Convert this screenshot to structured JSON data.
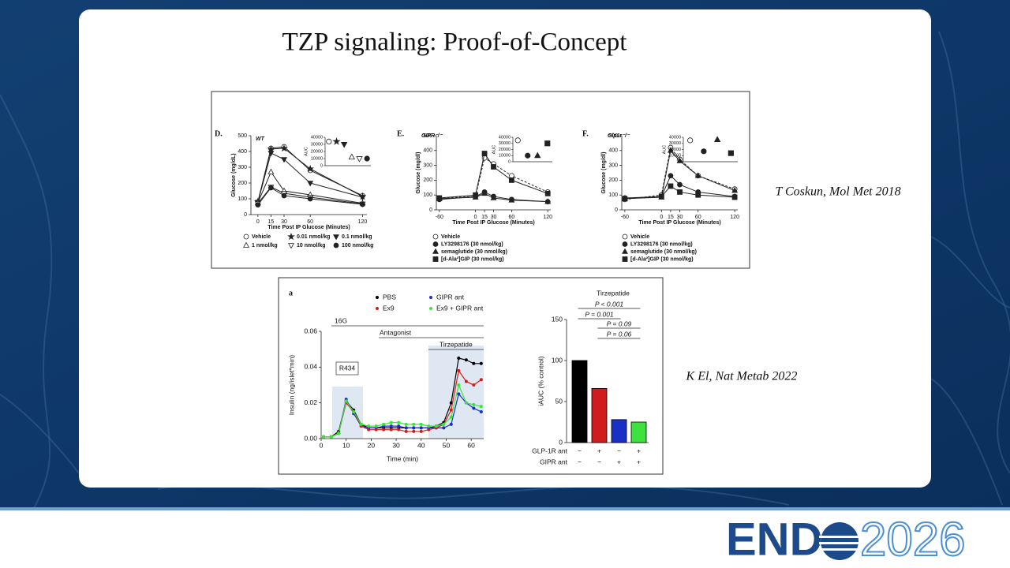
{
  "slide": {
    "title": "TZP signaling: Proof-of-Concept",
    "citations": [
      "T Coskun, Mol Met 2018",
      "K El, Nat Metab 2022"
    ],
    "logo": {
      "left": "END",
      "right": "2026"
    }
  },
  "chart_data": [
    {
      "type": "line",
      "panel": "D.",
      "genotype": "WT",
      "xlabel": "Time Post IP Glucose (Minutes)",
      "ylabel": "Glucose (mg/dL)",
      "x": [
        0,
        15,
        30,
        60,
        120
      ],
      "xlim": [
        -8,
        125
      ],
      "xticks": [
        0,
        15,
        30,
        60,
        120
      ],
      "ylim": [
        0,
        500
      ],
      "yticks": [
        0,
        100,
        200,
        300,
        400,
        500
      ],
      "series": [
        {
          "name": "Vehicle",
          "color": "#222222",
          "marker": "circle",
          "filled": false,
          "values": [
            80,
            420,
            430,
            280,
            120
          ]
        },
        {
          "name": "0.01 nmol/kg",
          "color": "#222222",
          "marker": "star",
          "filled": true,
          "values": [
            82,
            415,
            420,
            290,
            115
          ]
        },
        {
          "name": "0.1 nmol/kg",
          "color": "#222222",
          "marker": "triangle-down",
          "filled": true,
          "values": [
            78,
            390,
            350,
            200,
            110
          ]
        },
        {
          "name": "1 nmol/kg",
          "color": "#222222",
          "marker": "triangle",
          "filled": false,
          "values": [
            75,
            270,
            150,
            125,
            72
          ]
        },
        {
          "name": "10 nmol/kg",
          "color": "#222222",
          "marker": "triangle-down",
          "filled": false,
          "values": [
            70,
            175,
            135,
            110,
            68
          ]
        },
        {
          "name": "100 nmol/kg",
          "color": "#222222",
          "marker": "circle",
          "filled": true,
          "values": [
            62,
            170,
            120,
            100,
            65
          ]
        }
      ],
      "inset": {
        "ylabel": "AUC",
        "ylim": [
          0,
          40000
        ],
        "yticks": [
          0,
          10000,
          20000,
          30000,
          40000
        ],
        "values": [
          34000,
          34000,
          30000,
          12000,
          10000,
          10000
        ]
      }
    },
    {
      "type": "line",
      "panel": "E.",
      "genotype": "GIPR⁻/⁻",
      "xlabel": "Time Post IP Glucose (Minutes)",
      "ylabel": "Glucose (mg/dl)",
      "x": [
        -60,
        0,
        15,
        30,
        60,
        120
      ],
      "xlim": [
        -65,
        125
      ],
      "xticks": [
        -60,
        0,
        15,
        30,
        60,
        120
      ],
      "ylim": [
        0,
        500
      ],
      "yticks": [
        0,
        100,
        200,
        300,
        400,
        500
      ],
      "series": [
        {
          "name": "Vehicle",
          "color": "#222222",
          "marker": "circle",
          "filled": false,
          "line_style": "dashed",
          "values": [
            80,
            90,
            350,
            310,
            230,
            120
          ]
        },
        {
          "name": "LY3298176 (30 nmol/kg)",
          "color": "#222222",
          "marker": "circle",
          "filled": true,
          "values": [
            70,
            90,
            120,
            90,
            70,
            55
          ]
        },
        {
          "name": "semaglutide (30 nmol/kg)",
          "color": "#222222",
          "marker": "triangle",
          "filled": true,
          "values": [
            75,
            85,
            110,
            80,
            65,
            55
          ]
        },
        {
          "name": "[d-Ala²]GIP (30 nmol/kg)",
          "color": "#222222",
          "marker": "square",
          "filled": true,
          "values": [
            80,
            100,
            380,
            290,
            200,
            110
          ]
        }
      ],
      "inset": {
        "ylabel": "AUC",
        "ylim": [
          0,
          40000
        ],
        "yticks": [
          0,
          10000,
          20000,
          30000,
          40000
        ],
        "values": [
          35000,
          10000,
          10000,
          30000
        ]
      }
    },
    {
      "type": "line",
      "panel": "F.",
      "genotype": "Glp1r⁻/⁻",
      "xlabel": "Time Post IP Glucose (Minutes)",
      "ylabel": "Glucose (mg/dl)",
      "x": [
        -60,
        0,
        15,
        30,
        60,
        120
      ],
      "xlim": [
        -65,
        125
      ],
      "xticks": [
        -60,
        0,
        15,
        30,
        60,
        120
      ],
      "ylim": [
        0,
        500
      ],
      "yticks": [
        0,
        100,
        200,
        300,
        400,
        500
      ],
      "series": [
        {
          "name": "Vehicle",
          "color": "#222222",
          "marker": "circle",
          "filled": false,
          "line_style": "dashed",
          "values": [
            70,
            100,
            420,
            340,
            230,
            140
          ]
        },
        {
          "name": "LY3298176 (30 nmol/kg)",
          "color": "#222222",
          "marker": "circle",
          "filled": true,
          "values": [
            80,
            90,
            230,
            170,
            120,
            90
          ]
        },
        {
          "name": "semaglutide (30 nmol/kg)",
          "color": "#222222",
          "marker": "triangle",
          "filled": true,
          "values": [
            75,
            85,
            400,
            330,
            230,
            130
          ]
        },
        {
          "name": "[d-Ala²]GIP (30 nmol/kg)",
          "color": "#222222",
          "marker": "square",
          "filled": true,
          "values": [
            75,
            90,
            160,
            120,
            100,
            85
          ]
        }
      ],
      "inset": {
        "ylabel": "AUC",
        "ylim": [
          0,
          40000
        ],
        "yticks": [
          0,
          10000,
          20000,
          30000,
          40000
        ],
        "values": [
          35000,
          17000,
          36000,
          14000
        ]
      }
    },
    {
      "type": "line",
      "panel": "a",
      "xlabel": "Time (min)",
      "ylabel": "Insulin (ng/islet*min)",
      "annotations": [
        "16G",
        "Antagonist",
        "Tirzepatide",
        "R434"
      ],
      "x": [
        1,
        4,
        7,
        10,
        13,
        16,
        19,
        22,
        25,
        28,
        31,
        34,
        37,
        40,
        43,
        46,
        49,
        52,
        55,
        58,
        61,
        64
      ],
      "xlim": [
        0,
        65
      ],
      "xticks": [
        0,
        10,
        20,
        30,
        40,
        50,
        60
      ],
      "ylim": [
        0,
        0.06
      ],
      "yticks": [
        {
          "value": 0,
          "label": "0.00"
        },
        0.02,
        0.04,
        0.06
      ],
      "series": [
        {
          "name": "PBS",
          "color": "#000000",
          "marker": "circle",
          "filled": true,
          "values": [
            0.001,
            0.001,
            0.004,
            0.021,
            0.016,
            0.008,
            0.006,
            0.006,
            0.006,
            0.006,
            0.006,
            0.006,
            0.006,
            0.006,
            0.006,
            0.007,
            0.009,
            0.02,
            0.045,
            0.044,
            0.042,
            0.042
          ]
        },
        {
          "name": "GIPR ant",
          "color": "#1a2fc4",
          "marker": "circle",
          "filled": true,
          "values": [
            0.001,
            0.001,
            0.003,
            0.022,
            0.014,
            0.007,
            0.006,
            0.006,
            0.007,
            0.007,
            0.007,
            0.006,
            0.006,
            0.006,
            0.006,
            0.006,
            0.006,
            0.008,
            0.025,
            0.02,
            0.017,
            0.015
          ]
        },
        {
          "name": "Ex9",
          "color": "#d01c1c",
          "marker": "circle",
          "filled": true,
          "values": [
            0.001,
            0.001,
            0.003,
            0.02,
            0.015,
            0.007,
            0.005,
            0.005,
            0.005,
            0.005,
            0.005,
            0.004,
            0.004,
            0.004,
            0.005,
            0.006,
            0.008,
            0.016,
            0.038,
            0.032,
            0.03,
            0.033
          ]
        },
        {
          "name": "Ex9 + GIPR ant",
          "color": "#3ee23e",
          "marker": "circle",
          "filled": true,
          "values": [
            0.001,
            0.001,
            0.003,
            0.021,
            0.015,
            0.008,
            0.007,
            0.007,
            0.008,
            0.009,
            0.009,
            0.008,
            0.008,
            0.008,
            0.007,
            0.007,
            0.008,
            0.012,
            0.03,
            0.02,
            0.019,
            0.018
          ]
        }
      ]
    },
    {
      "type": "bar",
      "title": "Tirzepatide",
      "ylabel": "iAUC (% control)",
      "values": [
        100,
        66,
        28,
        25
      ],
      "colors": [
        "#000000",
        "#d01c1c",
        "#1a2fc4",
        "#3ee23e"
      ],
      "ylim": [
        0,
        150
      ],
      "yticks": [
        0,
        50,
        100,
        150
      ],
      "comparisons": [
        "P < 0.001",
        "P = 0.001",
        "P = 0.09",
        "P = 0.06"
      ],
      "rows": [
        {
          "label": "GLP-1R ant",
          "values": [
            "−",
            "+",
            "−",
            "+"
          ]
        },
        {
          "label": "GIPR ant",
          "values": [
            "−",
            "−",
            "+",
            "+"
          ]
        }
      ]
    }
  ]
}
